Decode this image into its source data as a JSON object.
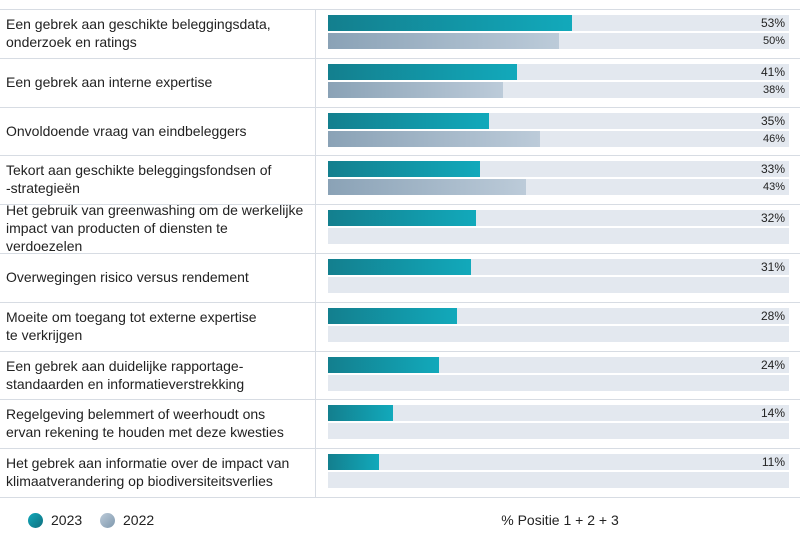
{
  "chart_data": {
    "type": "bar",
    "orientation": "horizontal",
    "categories": [
      "Een gebrek aan geschikte beleggingsdata,\nonderzoek en ratings",
      "Een gebrek aan interne expertise",
      "Onvoldoende vraag van eindbeleggers",
      "Tekort aan geschikte beleggingsfondsen of\n-strategieën",
      "Het gebruik van greenwashing om de werkelijke\nimpact van producten of diensten te verdoezelen",
      "Overwegingen risico versus rendement",
      "Moeite om toegang tot externe expertise\nte verkrijgen",
      "Een gebrek aan duidelijke rapportage-\nstandaarden en informatieverstrekking",
      "Regelgeving belemmert of weerhoudt ons\nervan rekening te houden met deze kwesties",
      "Het gebrek aan informatie over de impact van\nklimaatverandering op biodiversiteitsverlies"
    ],
    "series": [
      {
        "name": "2023",
        "color": "#12a9bb",
        "values": [
          53,
          41,
          35,
          33,
          32,
          31,
          28,
          24,
          14,
          11
        ],
        "labels": [
          "53%",
          "41%",
          "35%",
          "33%",
          "32%",
          "31%",
          "28%",
          "24%",
          "14%",
          "11%"
        ]
      },
      {
        "name": "2022",
        "color": "#a9bccc",
        "values": [
          50,
          38,
          46,
          43,
          null,
          null,
          null,
          null,
          null,
          null
        ],
        "labels": [
          "50%",
          "38%",
          "46%",
          "43%",
          null,
          null,
          null,
          null,
          null,
          null
        ]
      }
    ],
    "xlim": [
      0,
      100
    ],
    "xlabel": "% Positie 1 + 2 + 3",
    "legend": {
      "position": "bottom-left",
      "entries": [
        "2023",
        "2022"
      ]
    }
  }
}
